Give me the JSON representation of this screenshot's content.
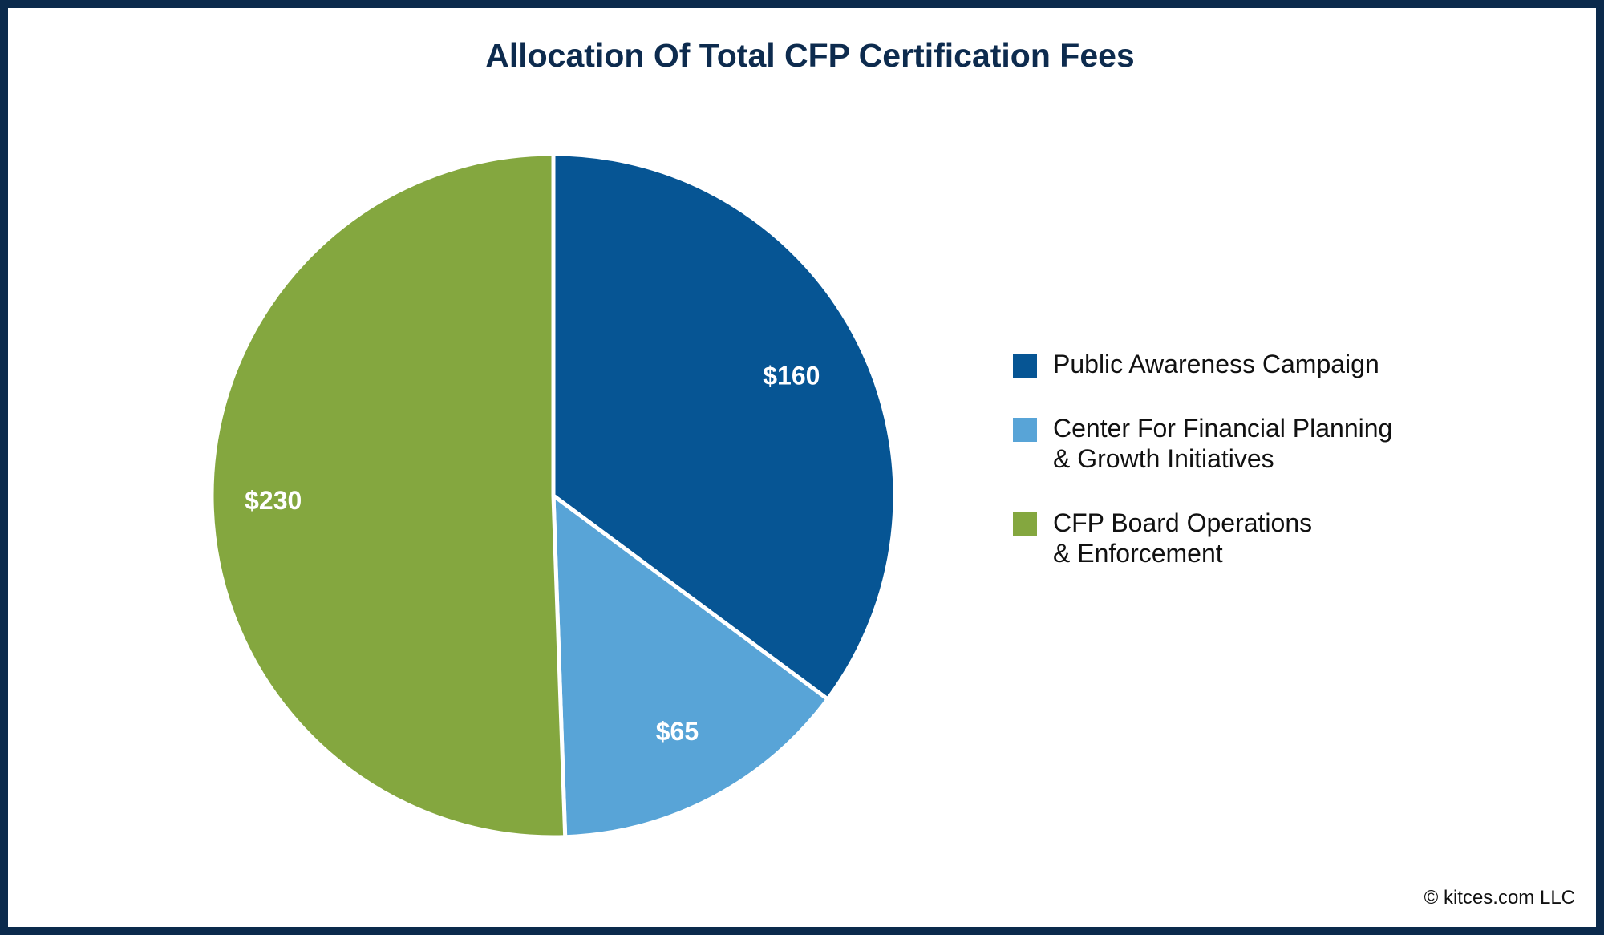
{
  "chart_data": {
    "type": "pie",
    "title": "Allocation Of Total CFP Certification Fees",
    "legend_position": "right",
    "slices": [
      {
        "name": "Public Awareness Campaign",
        "value": 160,
        "label": "$160",
        "color": "#065594"
      },
      {
        "name": "Center For Financial Planning\n& Growth Initiatives",
        "value": 65,
        "label": "$65",
        "color": "#58a4d7"
      },
      {
        "name": "CFP Board Operations\n& Enforcement",
        "value": 230,
        "label": "$230",
        "color": "#84a73f"
      }
    ]
  },
  "footer": {
    "copyright": "© kitces.com LLC"
  }
}
